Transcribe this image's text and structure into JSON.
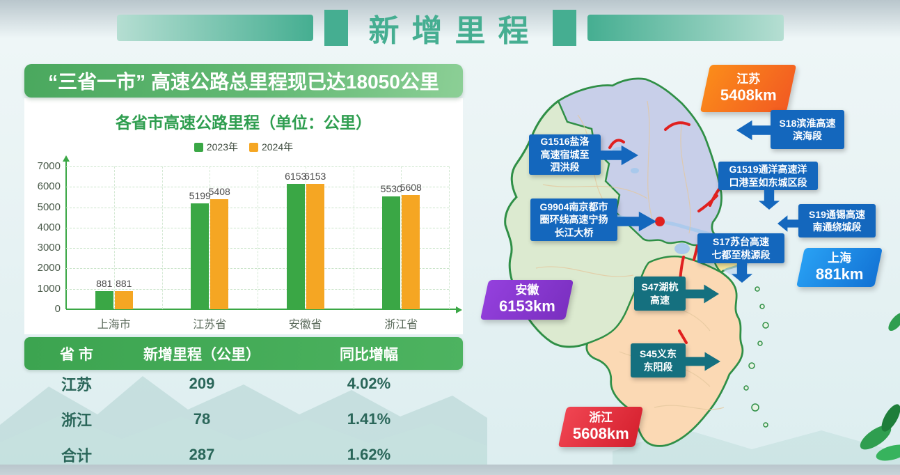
{
  "theme": {
    "deco_teal": "#45ae91",
    "banner_from": "#4aa85e",
    "banner_to": "#8ccf96",
    "title_green": "#2f9e50",
    "green": "#3aa745",
    "orange": "#f5a623",
    "table_header_green": "#3ca450",
    "table_text": "#2a6659",
    "callout_blue": "#1467bd",
    "callout_teal": "#15707f",
    "badge_jiangsu_from": "#fb8c1a",
    "badge_jiangsu_to": "#f25a22",
    "badge_shanghai_from": "#29a1f4",
    "badge_shanghai_to": "#1272d4",
    "badge_anhui_from": "#9440dd",
    "badge_anhui_to": "#7a2fc0",
    "badge_zhejiang_from": "#f04552",
    "badge_zhejiang_to": "#d5202e"
  },
  "header": {
    "title": "新增里程"
  },
  "left": {
    "banner": "“三省一市” 高速公路总里程现已达18050公里",
    "table": {
      "headers": [
        "省 市",
        "新增里程（公里）",
        "同比增幅"
      ],
      "rows": [
        [
          "江苏",
          "209",
          "4.02%"
        ],
        [
          "浙江",
          "78",
          "1.41%"
        ],
        [
          "合计",
          "287",
          "1.62%"
        ]
      ]
    }
  },
  "chart_data": {
    "type": "bar",
    "title": "各省市高速公路里程（单位：公里）",
    "categories": [
      "上海市",
      "江苏省",
      "安徽省",
      "浙江省"
    ],
    "series": [
      {
        "name": "2023年",
        "color": "#3aa745",
        "values": [
          881,
          5199,
          6153,
          5530
        ]
      },
      {
        "name": "2024年",
        "color": "#f5a623",
        "values": [
          881,
          5408,
          6153,
          5608
        ]
      }
    ],
    "ylim": [
      0,
      7000
    ],
    "ytick_step": 1000,
    "grid": true,
    "legend_position": "top",
    "xlabel": "",
    "ylabel": ""
  },
  "map": {
    "region_colors": {
      "jiangsu": "#c8cfe9",
      "anhui": "#dcead0",
      "zhejiang": "#fbd9b4",
      "shanghai": "#f6e79c",
      "outline": "#2f8f46",
      "highlight": "#e0201f"
    },
    "badges": [
      {
        "name": "江苏",
        "value": "5408km"
      },
      {
        "name": "上海",
        "value": "881km"
      },
      {
        "name": "安徽",
        "value": "6153km"
      },
      {
        "name": "浙江",
        "value": "5608km"
      }
    ],
    "callouts": [
      {
        "lines": [
          "S18滨淮高速",
          "滨海段"
        ]
      },
      {
        "lines": [
          "G1516盐洛",
          "高速宿城至",
          "泗洪段"
        ]
      },
      {
        "lines": [
          "G1519通洋高速洋",
          "口港至如东城区段"
        ]
      },
      {
        "lines": [
          "G9904南京都市",
          "圈环线高速宁扬",
          "长江大桥"
        ]
      },
      {
        "lines": [
          "S19通锡高速",
          "南通绕城段"
        ]
      },
      {
        "lines": [
          "S17苏台高速",
          "七都至桃源段"
        ]
      },
      {
        "lines": [
          "S47湖杭",
          "高速"
        ]
      },
      {
        "lines": [
          "S45义东",
          "东阳段"
        ]
      }
    ]
  }
}
